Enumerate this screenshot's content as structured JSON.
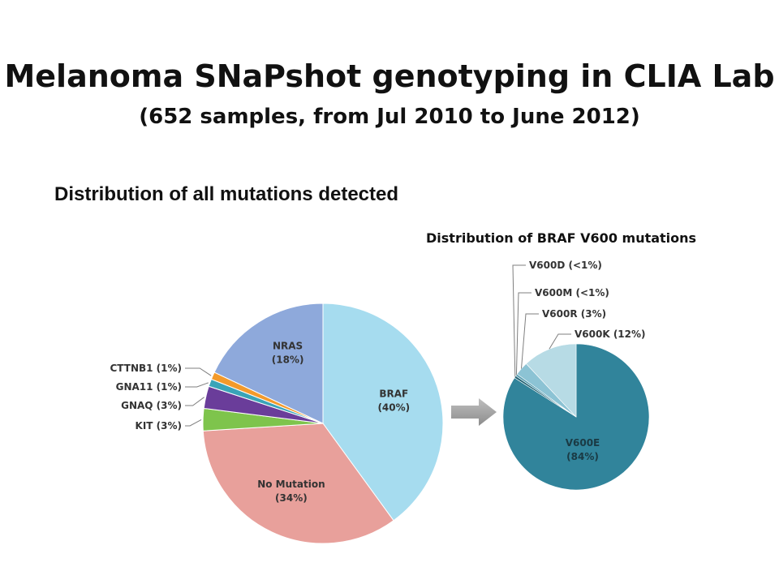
{
  "title": "Melanoma SNaPshot genotyping in CLIA Lab",
  "subtitle": "(652 samples, from Jul 2010 to June 2012)",
  "section_heading": "Distribution of all mutations detected",
  "braf_caption": "Distribution of BRAF V600 mutations",
  "chart_data": [
    {
      "type": "pie",
      "title": "Distribution of all mutations detected",
      "slices": [
        {
          "label": "BRAF",
          "pct_label": "(40%)",
          "value": 40,
          "color": "#a6dcef"
        },
        {
          "label": "No Mutation",
          "pct_label": "(34%)",
          "value": 34,
          "color": "#e8a09b"
        },
        {
          "label": "KIT",
          "pct_label": "(3%)",
          "value": 3,
          "color": "#7ec44c"
        },
        {
          "label": "GNAQ",
          "pct_label": "(3%)",
          "value": 3,
          "color": "#6a3d9a"
        },
        {
          "label": "GNA11",
          "pct_label": "(1%)",
          "value": 1,
          "color": "#3aa4b8"
        },
        {
          "label": "CTTNB1",
          "pct_label": "(1%)",
          "value": 1,
          "color": "#f39a2b"
        },
        {
          "label": "NRAS",
          "pct_label": "(18%)",
          "value": 18,
          "color": "#8ea9db"
        }
      ]
    },
    {
      "type": "pie",
      "title": "Distribution of BRAF V600 mutations",
      "slices": [
        {
          "label": "V600E",
          "pct_label": "(84%)",
          "value": 84,
          "color": "#31849b"
        },
        {
          "label": "V600D",
          "pct_label": "(<1%)",
          "value": 0.5,
          "color": "#1f5f70"
        },
        {
          "label": "V600M",
          "pct_label": "(<1%)",
          "value": 0.5,
          "color": "#5a9fb3"
        },
        {
          "label": "V600R",
          "pct_label": "(3%)",
          "value": 3,
          "color": "#8cc3d4"
        },
        {
          "label": "V600K",
          "pct_label": "(12%)",
          "value": 12,
          "color": "#b7dbe5"
        }
      ]
    }
  ]
}
